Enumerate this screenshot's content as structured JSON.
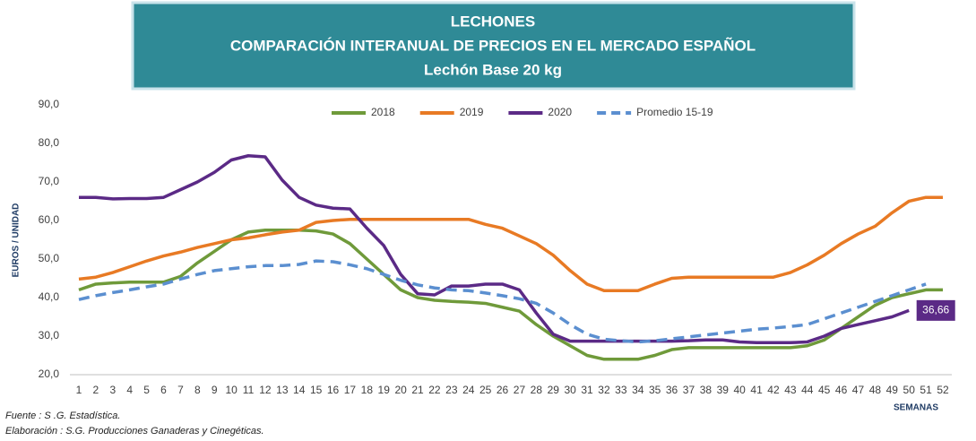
{
  "chart_data": {
    "type": "line",
    "title": [
      "LECHONES",
      "COMPARACIÓN INTERANUAL DE PRECIOS EN EL MERCADO ESPAÑOL",
      "Lechón Base 20 kg"
    ],
    "ylabel": "EUROS / UNIDAD",
    "xlabel": "SEMANAS",
    "footnotes": [
      "Fuente :  S .G. Estadística.",
      "Elaboración : S.G. Producciones Ganaderas y Cinegéticas."
    ],
    "categories": [
      "1",
      "2",
      "3",
      "4",
      "5",
      "6",
      "7",
      "8",
      "9",
      "10",
      "11",
      "12",
      "13",
      "14",
      "15",
      "16",
      "17",
      "18",
      "19",
      "20",
      "21",
      "22",
      "23",
      "24",
      "25",
      "26",
      "27",
      "28",
      "29",
      "30",
      "31",
      "32",
      "33",
      "34",
      "35",
      "36",
      "37",
      "38",
      "39",
      "40",
      "41",
      "42",
      "43",
      "44",
      "45",
      "46",
      "47",
      "48",
      "49",
      "50",
      "51",
      "52"
    ],
    "ylim": [
      20,
      90
    ],
    "yticks": [
      {
        "value": 20,
        "label": "20,0"
      },
      {
        "value": 30,
        "label": "30,0"
      },
      {
        "value": 40,
        "label": "40,0"
      },
      {
        "value": 50,
        "label": "50,0"
      },
      {
        "value": 60,
        "label": "60,0"
      },
      {
        "value": 70,
        "label": "70,0"
      },
      {
        "value": 80,
        "label": "80,0"
      },
      {
        "value": 90,
        "label": "90,0"
      }
    ],
    "grid": false,
    "legend": "top",
    "series": [
      {
        "name": "2018",
        "color": "#6f9a3a",
        "dashed": false,
        "values": [
          42,
          43.5,
          43.8,
          44,
          44,
          44,
          45.5,
          49,
          52,
          55,
          57,
          57.5,
          57.5,
          57.5,
          57.3,
          56.5,
          54,
          50,
          46,
          42,
          40,
          39.3,
          39,
          38.8,
          38.5,
          37.5,
          36.5,
          33,
          30,
          27.5,
          25,
          24,
          24,
          24,
          25,
          26.5,
          27,
          27,
          27,
          27,
          27,
          27,
          27,
          27.5,
          29,
          32,
          35,
          38,
          40,
          41,
          42,
          42
        ]
      },
      {
        "name": "2019",
        "color": "#e87a24",
        "dashed": false,
        "values": [
          44.8,
          45.3,
          46.5,
          48,
          49.5,
          50.8,
          51.8,
          53,
          54,
          55,
          55.5,
          56.3,
          57,
          57.5,
          59.5,
          60,
          60.3,
          60.3,
          60.3,
          60.3,
          60.3,
          60.3,
          60.3,
          60.3,
          59,
          58,
          56,
          54,
          51,
          47,
          43.5,
          41.8,
          41.8,
          41.8,
          43.5,
          45,
          45.3,
          45.3,
          45.3,
          45.3,
          45.3,
          45.3,
          46.5,
          48.5,
          51,
          54,
          56.5,
          58.5,
          62,
          65,
          66,
          66
        ]
      },
      {
        "name": "2020",
        "color": "#5b2a86",
        "dashed": false,
        "values": [
          66,
          66,
          65.6,
          65.7,
          65.7,
          66,
          68,
          70,
          72.5,
          75.7,
          76.8,
          76.5,
          70.5,
          66,
          64,
          63.2,
          63,
          58,
          53.5,
          46,
          41,
          40.7,
          43,
          43,
          43.5,
          43.5,
          42,
          36,
          30.5,
          28.7,
          28.7,
          28.7,
          28.7,
          28.7,
          28.7,
          28.7,
          28.8,
          29,
          29,
          28.5,
          28.3,
          28.3,
          28.3,
          28.5,
          30,
          32,
          33,
          34,
          35,
          36.66,
          null,
          null
        ],
        "value_labels": [
          null,
          null,
          null,
          null,
          null,
          null,
          null,
          null,
          null,
          null,
          null,
          null,
          null,
          null,
          null,
          null,
          null,
          null,
          null,
          null,
          null,
          null,
          null,
          null,
          null,
          null,
          null,
          null,
          null,
          null,
          null,
          null,
          null,
          null,
          null,
          null,
          null,
          null,
          null,
          null,
          null,
          null,
          null,
          null,
          null,
          null,
          null,
          null,
          null,
          "36,66",
          null,
          null
        ]
      },
      {
        "name": "Promedio 15-19",
        "color": "#5b8fd0",
        "dashed": true,
        "values": [
          39.5,
          40.5,
          41.3,
          42,
          42.8,
          43.5,
          44.8,
          46,
          47,
          47.5,
          48,
          48.3,
          48.3,
          48.6,
          49.5,
          49.3,
          48.5,
          47.5,
          46,
          44.5,
          43.3,
          42.5,
          42,
          41.8,
          41.2,
          40.5,
          39.7,
          38.5,
          36,
          33,
          30.5,
          29.2,
          28.8,
          28.5,
          28.8,
          29.3,
          29.8,
          30.3,
          30.8,
          31.3,
          31.8,
          32.1,
          32.5,
          33,
          34.5,
          36,
          37.5,
          39,
          40.5,
          42,
          43.5,
          null
        ]
      }
    ]
  }
}
